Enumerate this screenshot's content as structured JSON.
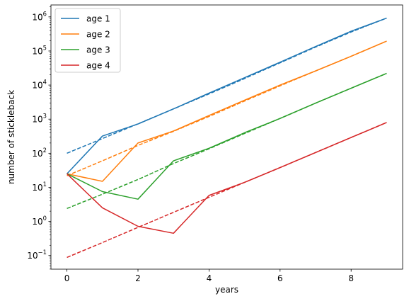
{
  "chart_data": {
    "type": "line",
    "scale_y": "log",
    "xlabel": "years",
    "ylabel": "number of stickleback",
    "xlim": [
      -0.45,
      9.45
    ],
    "ylim_log10": [
      -1.4,
      6.35
    ],
    "x_ticks": [
      0,
      2,
      4,
      6,
      8
    ],
    "y_tick_exponents": [
      -1,
      0,
      1,
      2,
      3,
      4,
      5,
      6
    ],
    "legend_position": "upper-left",
    "grid": false,
    "series": [
      {
        "name": "age 1",
        "color": "#1f77b4",
        "observed": {
          "x": [
            0,
            1,
            2,
            3,
            4,
            5,
            6,
            7,
            8,
            9
          ],
          "y": [
            25,
            320,
            720,
            2000,
            5800,
            16500,
            47000,
            135000,
            380000,
            920000
          ]
        },
        "fitted": {
          "x": [
            0,
            1,
            2,
            3,
            4,
            5,
            6,
            7,
            8,
            9
          ],
          "y": [
            100,
            270,
            730,
            2000,
            5500,
            15500,
            45000,
            130000,
            360000,
            920000
          ]
        }
      },
      {
        "name": "age 2",
        "color": "#ff7f0e",
        "observed": {
          "x": [
            0,
            1,
            2,
            3,
            4,
            5,
            6,
            7,
            8,
            9
          ],
          "y": [
            25,
            15,
            200,
            450,
            1280,
            3600,
            10000,
            26000,
            70000,
            195000
          ]
        },
        "fitted": {
          "x": [
            0,
            1,
            2,
            3,
            4,
            5,
            6,
            7,
            8,
            9
          ],
          "y": [
            22,
            60,
            170,
            440,
            1200,
            3400,
            9500,
            26000,
            70000,
            195000
          ]
        }
      },
      {
        "name": "age 3",
        "color": "#2ca02c",
        "observed": {
          "x": [
            0,
            1,
            2,
            3,
            4,
            5,
            6,
            7,
            8,
            9
          ],
          "y": [
            25,
            7.5,
            4.5,
            60,
            140,
            400,
            1050,
            2950,
            8100,
            22000
          ]
        },
        "fitted": {
          "x": [
            0,
            1,
            2,
            3,
            4,
            5,
            6,
            7,
            8,
            9
          ],
          "y": [
            2.4,
            6.3,
            17,
            50,
            135,
            380,
            1050,
            2950,
            8100,
            22000
          ]
        }
      },
      {
        "name": "age 4",
        "color": "#d62728",
        "observed": {
          "x": [
            0,
            1,
            2,
            3,
            4,
            5,
            6,
            7,
            8,
            9
          ],
          "y": [
            25,
            2.5,
            0.72,
            0.45,
            5.8,
            14,
            38,
            105,
            290,
            800
          ]
        },
        "fitted": {
          "x": [
            0,
            1,
            2,
            3,
            4,
            5,
            6,
            7,
            8,
            9
          ],
          "y": [
            0.088,
            0.24,
            0.67,
            1.85,
            5.1,
            14,
            38,
            105,
            290,
            800
          ]
        }
      }
    ]
  }
}
